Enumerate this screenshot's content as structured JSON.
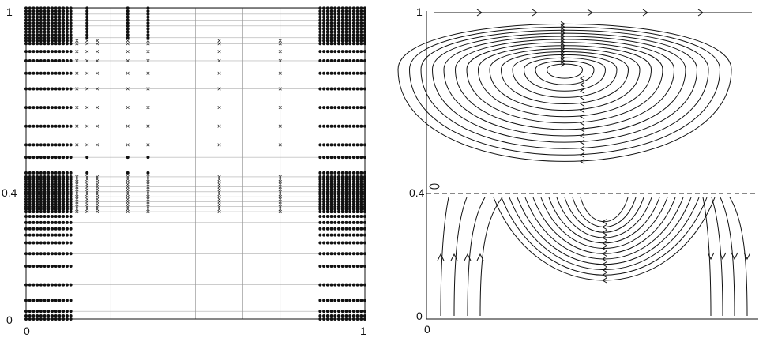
{
  "left_panel": {
    "axis": {
      "x_min_label": "0",
      "x_max_label": "1",
      "y_min_label": "0",
      "y_mid_label": "0.4",
      "y_max_label": "1"
    },
    "node_marker": "dot",
    "refined_marker": "x"
  },
  "right_panel": {
    "axis": {
      "x_min_label": "0",
      "y_min_label": "0",
      "y_mid_label": "0.4",
      "y_max_label": "1"
    },
    "interface_line_style": "dashed",
    "interface_level": 0.4
  },
  "colors": {
    "ink": "#111111",
    "background": "#ffffff"
  }
}
